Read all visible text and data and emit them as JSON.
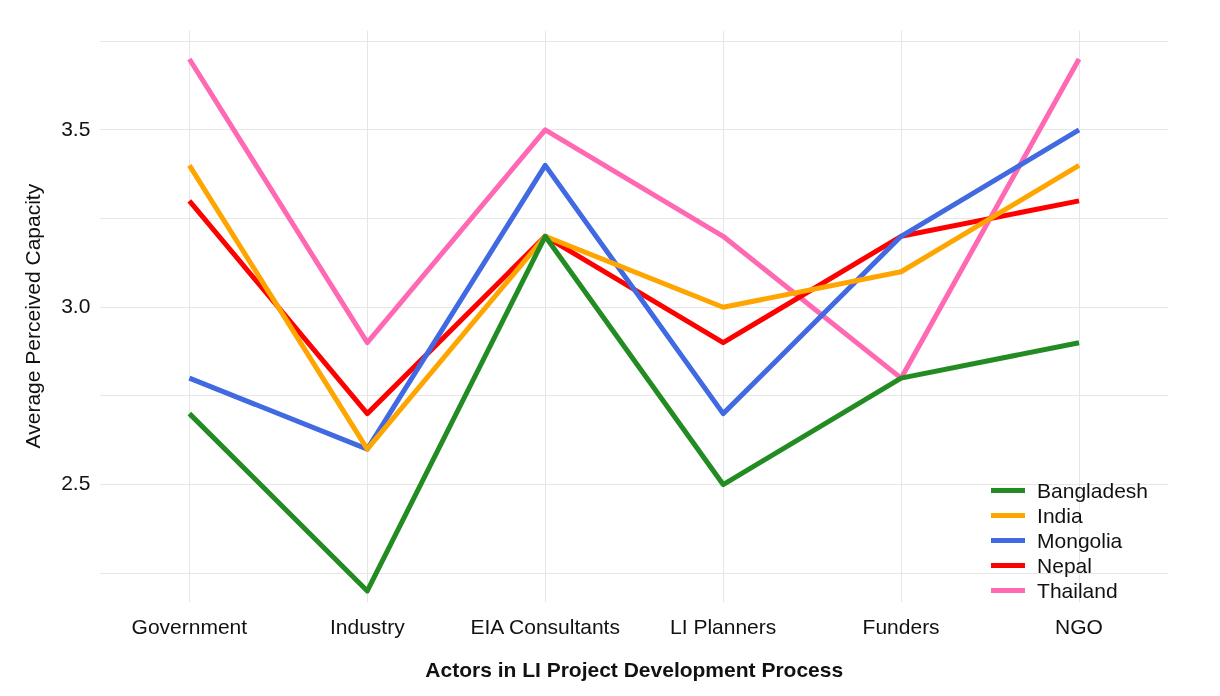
{
  "chart_data": {
    "type": "line",
    "xlabel": "Actors in LI Project Development Process",
    "ylabel": "Average Perceived Capacity",
    "categories": [
      "Government",
      "Industry",
      "EIA Consultants",
      "LI Planners",
      "Funders",
      "NGO"
    ],
    "series": [
      {
        "name": "Bangladesh",
        "color": "#228b22",
        "values": [
          2.7,
          2.2,
          3.2,
          2.5,
          2.8,
          2.9
        ]
      },
      {
        "name": "India",
        "color": "#ffa500",
        "values": [
          3.4,
          2.6,
          3.2,
          3.0,
          3.1,
          3.4
        ]
      },
      {
        "name": "Mongolia",
        "color": "#4169e1",
        "values": [
          2.8,
          2.6,
          3.4,
          2.7,
          3.2,
          3.5
        ]
      },
      {
        "name": "Nepal",
        "color": "#ff0000",
        "values": [
          3.3,
          2.7,
          3.2,
          2.9,
          3.2,
          3.3
        ]
      },
      {
        "name": "Thailand",
        "color": "#ff69b4",
        "values": [
          3.7,
          2.9,
          3.5,
          3.2,
          2.8,
          3.7
        ]
      }
    ],
    "ylim": [
      2.17,
      3.78
    ],
    "yticks": [
      {
        "value": 2.25,
        "label": null
      },
      2.5,
      {
        "value": 2.75,
        "label": null
      },
      {
        "value": 3,
        "label": "3.0"
      },
      {
        "value": 3.25,
        "label": null
      },
      3.5,
      {
        "value": 3.75,
        "label": null
      }
    ],
    "grid": true,
    "legend": "bottom right",
    "marker": "none",
    "line_style": "solid"
  }
}
